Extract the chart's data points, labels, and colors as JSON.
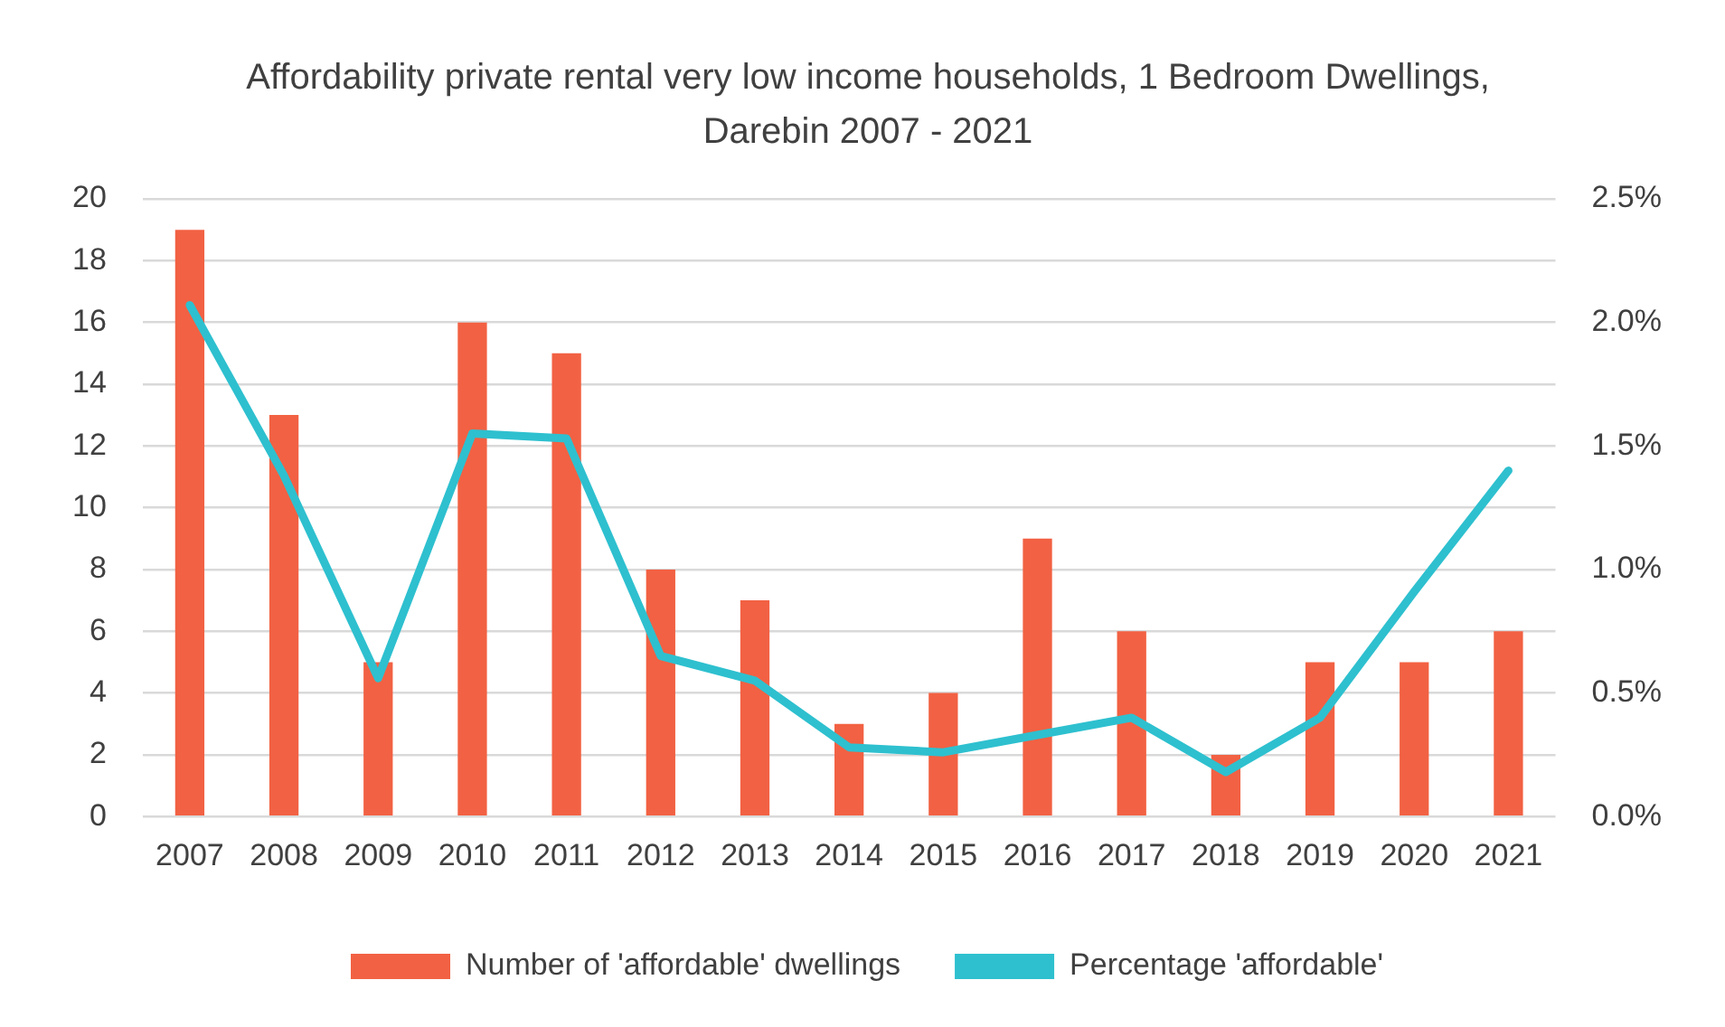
{
  "chart_data": {
    "type": "bar",
    "title": "Affordability private rental very low income households, 1 Bedroom Dwellings, Darebin 2007 - 2021",
    "categories": [
      "2007",
      "2008",
      "2009",
      "2010",
      "2011",
      "2012",
      "2013",
      "2014",
      "2015",
      "2016",
      "2017",
      "2018",
      "2019",
      "2020",
      "2021"
    ],
    "series": [
      {
        "name": "Number of 'affordable' dwellings",
        "color": "#f26143",
        "values": [
          19,
          13,
          5,
          16,
          15,
          8,
          7,
          3,
          4,
          9,
          6,
          2,
          5,
          5,
          6
        ]
      },
      {
        "name": "Percentage 'affordable'",
        "type": "line",
        "axis": "y2",
        "color": "#2ec0cf",
        "values": [
          2.07,
          1.38,
          0.56,
          1.55,
          1.53,
          0.65,
          0.55,
          0.28,
          0.26,
          0.33,
          0.4,
          0.18,
          0.4,
          0.91,
          1.4
        ]
      }
    ],
    "ylim": [
      0,
      20
    ],
    "yticks": [
      0,
      2,
      4,
      6,
      8,
      10,
      12,
      14,
      16,
      18,
      20
    ],
    "y2lim": [
      0,
      2.5
    ],
    "y2ticks": [
      {
        "value": 0,
        "label": "0.0%"
      },
      {
        "value": 0.5,
        "label": "0.5%"
      },
      {
        "value": 1,
        "label": "1.0%"
      },
      {
        "value": 1.5,
        "label": "1.5%"
      },
      {
        "value": 2,
        "label": "2.0%"
      },
      {
        "value": 2.5,
        "label": "2.5%"
      }
    ],
    "grid": "y",
    "legend": "bottom",
    "marker": "none"
  }
}
